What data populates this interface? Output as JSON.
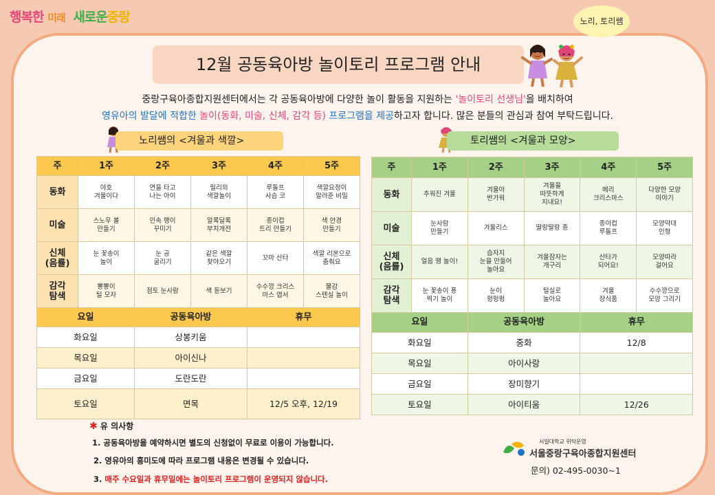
{
  "slogan": {
    "part1": "행복한",
    "part2": "미래",
    "part3": "새로운",
    "part4": "중랑"
  },
  "speech_bubble": "노리, 토리쌤",
  "title": "12월 공동육아방 놀이토리 프로그램 안내",
  "intro": {
    "line1_a": "중랑구육아종합지원센터에서는 각 공동육아방에 다양한 놀이 활동을 지원하는 ",
    "line1_b": "'놀이토리 선생님'",
    "line1_c": "을 배치하여",
    "line2_a": "영유아의 발달에 적합한",
    "line2_b": " 놀이(동화, 미술, 신체, 감각 등) ",
    "line2_c": "프로그램을 제공",
    "line2_d": "하고자 합니다. 많은 분들의 관심과 참여 부탁드립니다."
  },
  "left": {
    "label": "노리쌤의 <겨울과 색깔>",
    "header": [
      "주",
      "1주",
      "2주",
      "3주",
      "4주",
      "5주"
    ],
    "rows": [
      {
        "name": "동화",
        "cells": [
          "야호\n겨울이다",
          "연을 타고\n나는 아이",
          "릴리의\n색깔놀이",
          "루돌프\n사슴 코",
          "색깔요정이\n알려준 비밀"
        ]
      },
      {
        "name": "미술",
        "cells": [
          "스노우 볼\n만들기",
          "민속 팽이\n꾸미기",
          "알록달록\n부치개전",
          "종이컵\n트리 만들기",
          "색 안경\n만들기"
        ]
      },
      {
        "name": "신체\n(음률)",
        "cells": [
          "눈 꽃송이\n놀이",
          "눈 공\n굴리기",
          "같은 색깔\n찾아오기",
          "꼬마 산타",
          "색깔 리본으로\n춤춰요"
        ]
      },
      {
        "name": "감각\n탐색",
        "cells": [
          "뽕뽕이\n털 모자",
          "점토 눈사람",
          "색 돋보기",
          "수수깡 크리스\n마스 엽서",
          "물감\n스텐실 놀이"
        ]
      }
    ],
    "schedule_header": [
      "요일",
      "공동육아방",
      "휴무"
    ],
    "schedule": [
      [
        "화요일",
        "상봉키움",
        ""
      ],
      [
        "목요일",
        "아이신나",
        ""
      ],
      [
        "금요일",
        "도란도란",
        ""
      ],
      [
        "토요일",
        "면목",
        "12/5 오후, 12/19"
      ]
    ]
  },
  "right": {
    "label": "토리쌤의 <겨울과 모양>",
    "header": [
      "주",
      "1주",
      "2주",
      "3주",
      "4주",
      "5주"
    ],
    "rows": [
      {
        "name": "동화",
        "cells": [
          "추워진 겨울",
          "겨울아\n반가워",
          "겨울을\n따뜻하게\n지내요!",
          "메리\n크리스마스",
          "다양한 모양\n이야기"
        ]
      },
      {
        "name": "미술",
        "cells": [
          "눈사람\n만들기",
          "겨울리스",
          "딸랑딸랑 종",
          "종이컵\n루돌프",
          "모양막대\n인형"
        ]
      },
      {
        "name": "신체\n(음률)",
        "cells": [
          "얼음 땡 놀이!",
          "습자지\n눈을 만들어\n놀아요",
          "겨울잠자는\n개구리",
          "산타가\n되어요!",
          "모양따라\n걸어요"
        ]
      },
      {
        "name": "감각\n탐색",
        "cells": [
          "눈 꽃송이 퐁\n찍기 놀이",
          "눈이\n펑펑펑",
          "털실로\n놀아요",
          "겨울\n장식품",
          "수수깡으로\n모양 그리기"
        ]
      }
    ],
    "schedule_header": [
      "요일",
      "공동육아방",
      "휴무"
    ],
    "schedule": [
      [
        "화요일",
        "중화",
        "12/8"
      ],
      [
        "목요일",
        "아이사랑",
        ""
      ],
      [
        "금요일",
        "장미향기",
        ""
      ],
      [
        "토요일",
        "아이티움",
        "12/26"
      ]
    ]
  },
  "notes": {
    "title": "유 의사항",
    "n1": "1. 공동육아방을 예약하시면 별도의 신청없이 무료로 이용이 가능합니다.",
    "n2": "2. 영유아의 흥미도에 따라 프로그램 내용은 변경될 수 있습니다.",
    "n3_prefix": "3. ",
    "n3": "매주 수요일과 휴무일에는 놀이토리 프로그램이 운영되지 않습니다."
  },
  "logo": {
    "sub": "서일대학교 위탁운영",
    "main": "서울중랑구육아종합지원센터"
  },
  "contact": "문의) 02-495-0030~1",
  "colors": {
    "background": "#f6c9b2",
    "frame": "#fdf4ed",
    "left_accent": "#fcc94e",
    "right_accent": "#a5d186",
    "highlight_pink": "#e8457a",
    "highlight_blue": "#1f73c4"
  }
}
